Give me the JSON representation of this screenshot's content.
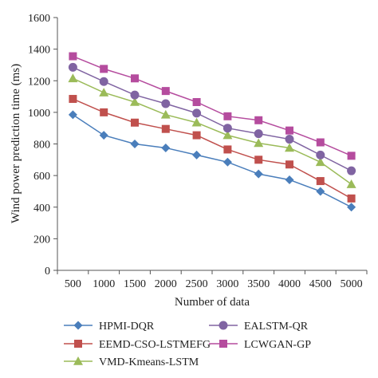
{
  "chart_data": {
    "type": "line",
    "title": "",
    "xlabel": "Number of data",
    "ylabel": "Wind power prediction time (ms)",
    "x": [
      500,
      1000,
      1500,
      2000,
      2500,
      3000,
      3500,
      4000,
      4500,
      5000
    ],
    "ylim": [
      0,
      1600
    ],
    "yticks": [
      0,
      200,
      400,
      600,
      800,
      1000,
      1200,
      1400,
      1600
    ],
    "grid": false,
    "legend_position": "bottom",
    "series": [
      {
        "name": "HPMI-DQR",
        "color": "#4a7ebb",
        "marker": "diamond",
        "values": [
          985,
          855,
          800,
          775,
          730,
          685,
          610,
          573,
          500,
          400
        ]
      },
      {
        "name": "EALSTM-QR",
        "color": "#8064a2",
        "marker": "circle",
        "values": [
          1285,
          1195,
          1110,
          1055,
          995,
          900,
          865,
          830,
          730,
          630
        ]
      },
      {
        "name": "EEMD-CSO-LSTMEFG",
        "color": "#c0504d",
        "marker": "square",
        "values": [
          1085,
          1000,
          935,
          895,
          855,
          765,
          700,
          670,
          565,
          455
        ]
      },
      {
        "name": "LCWGAN-GP",
        "color": "#b54c9e",
        "marker": "square",
        "values": [
          1355,
          1275,
          1215,
          1135,
          1065,
          975,
          950,
          885,
          810,
          725
        ]
      },
      {
        "name": "VMD-Kmeans-LSTM",
        "color": "#9bbb59",
        "marker": "triangle",
        "values": [
          1215,
          1125,
          1065,
          985,
          935,
          855,
          805,
          775,
          685,
          545
        ]
      }
    ]
  }
}
